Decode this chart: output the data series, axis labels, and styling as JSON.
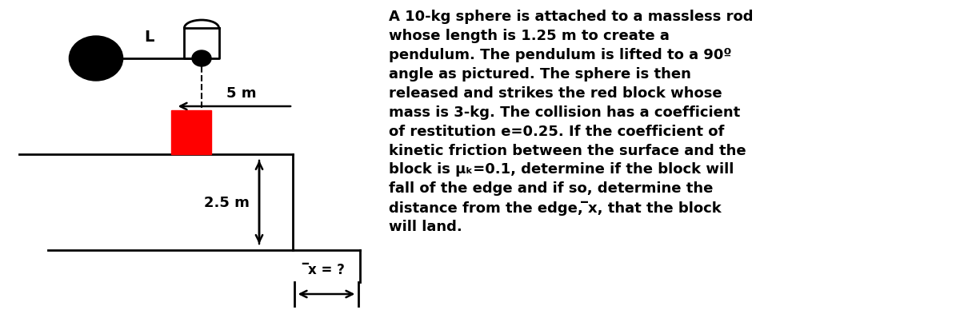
{
  "bg_color": "#ffffff",
  "text_color": "#000000",
  "description_lines": [
    "A 10-kg sphere is attached to a massless rod",
    "whose length is 1.25 m to create a",
    "pendulum. The pendulum is lifted to a 90º",
    "angle as pictured. The sphere is then",
    "released and strikes the red block whose",
    "mass is 3-kg. The collision has a coefficient",
    "of restitution e=0.25. If the coefficient of",
    "kinetic friction between the surface and the",
    "block is μₖ=0.1, determine if the block will",
    "fall of the edge and if so, determine the",
    "distance from the edge, ̅x, that the block",
    "will land."
  ],
  "dim_5m": "5 m",
  "dim_25m": "2.5 m",
  "label_L": "L",
  "label_x": "̅x = ?",
  "rod_color": "#000000",
  "sphere_color": "#000000",
  "block_color": "#ff0000",
  "text_fontsize": 13.0
}
